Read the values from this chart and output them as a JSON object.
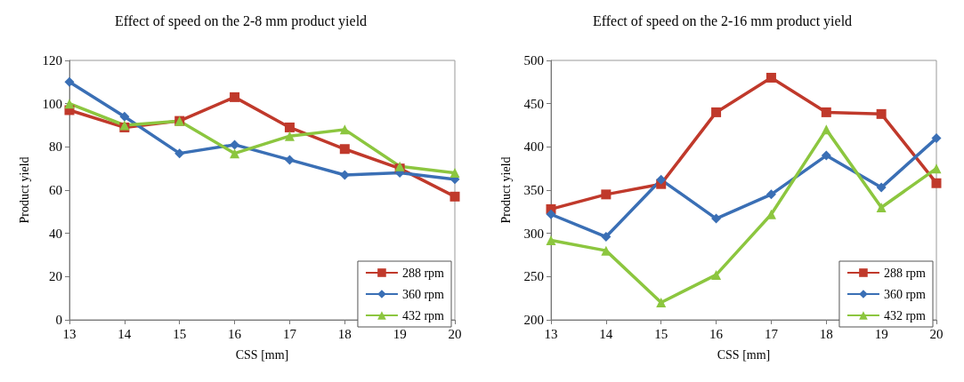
{
  "chart_data": [
    {
      "type": "line",
      "title": "Effect of speed on the 2-8 mm product yield",
      "xlabel": "CSS [mm]",
      "ylabel": "Product yield",
      "x": [
        13,
        14,
        15,
        16,
        17,
        18,
        19,
        20
      ],
      "xlim": [
        13,
        20
      ],
      "xticks": [
        13,
        14,
        15,
        16,
        17,
        18,
        19,
        20
      ],
      "ylim": [
        0,
        120
      ],
      "yticks": [
        0,
        20,
        40,
        60,
        80,
        100,
        120
      ],
      "grid": false,
      "legend": "bottom right",
      "series": [
        {
          "name": "288 rpm",
          "color": "#c0392b",
          "marker": "square",
          "values": [
            97,
            89,
            92,
            103,
            89,
            79,
            70,
            57
          ]
        },
        {
          "name": "360 rpm",
          "color": "#3a6fb5",
          "marker": "diamond",
          "values": [
            110,
            94,
            77,
            81,
            74,
            67,
            68,
            65
          ]
        },
        {
          "name": "432 rpm",
          "color": "#8cc63f",
          "marker": "triangle",
          "values": [
            100,
            90,
            92,
            77,
            85,
            88,
            71,
            68
          ]
        }
      ]
    },
    {
      "type": "line",
      "title": "Effect of speed on the 2-16 mm product yield",
      "xlabel": "CSS [mm]",
      "ylabel": "Product yield",
      "x": [
        13,
        14,
        15,
        16,
        17,
        18,
        19,
        20
      ],
      "xlim": [
        13,
        20
      ],
      "xticks": [
        13,
        14,
        15,
        16,
        17,
        18,
        19,
        20
      ],
      "ylim": [
        200,
        500
      ],
      "yticks": [
        200,
        250,
        300,
        350,
        400,
        450,
        500
      ],
      "grid": false,
      "legend": "bottom right",
      "series": [
        {
          "name": "288 rpm",
          "color": "#c0392b",
          "marker": "square",
          "values": [
            328,
            345,
            357,
            440,
            480,
            440,
            438,
            358
          ]
        },
        {
          "name": "360 rpm",
          "color": "#3a6fb5",
          "marker": "diamond",
          "values": [
            322,
            296,
            362,
            317,
            345,
            390,
            353,
            410
          ]
        },
        {
          "name": "432 rpm",
          "color": "#8cc63f",
          "marker": "triangle",
          "values": [
            292,
            280,
            220,
            252,
            322,
            420,
            330,
            375
          ]
        }
      ]
    }
  ]
}
